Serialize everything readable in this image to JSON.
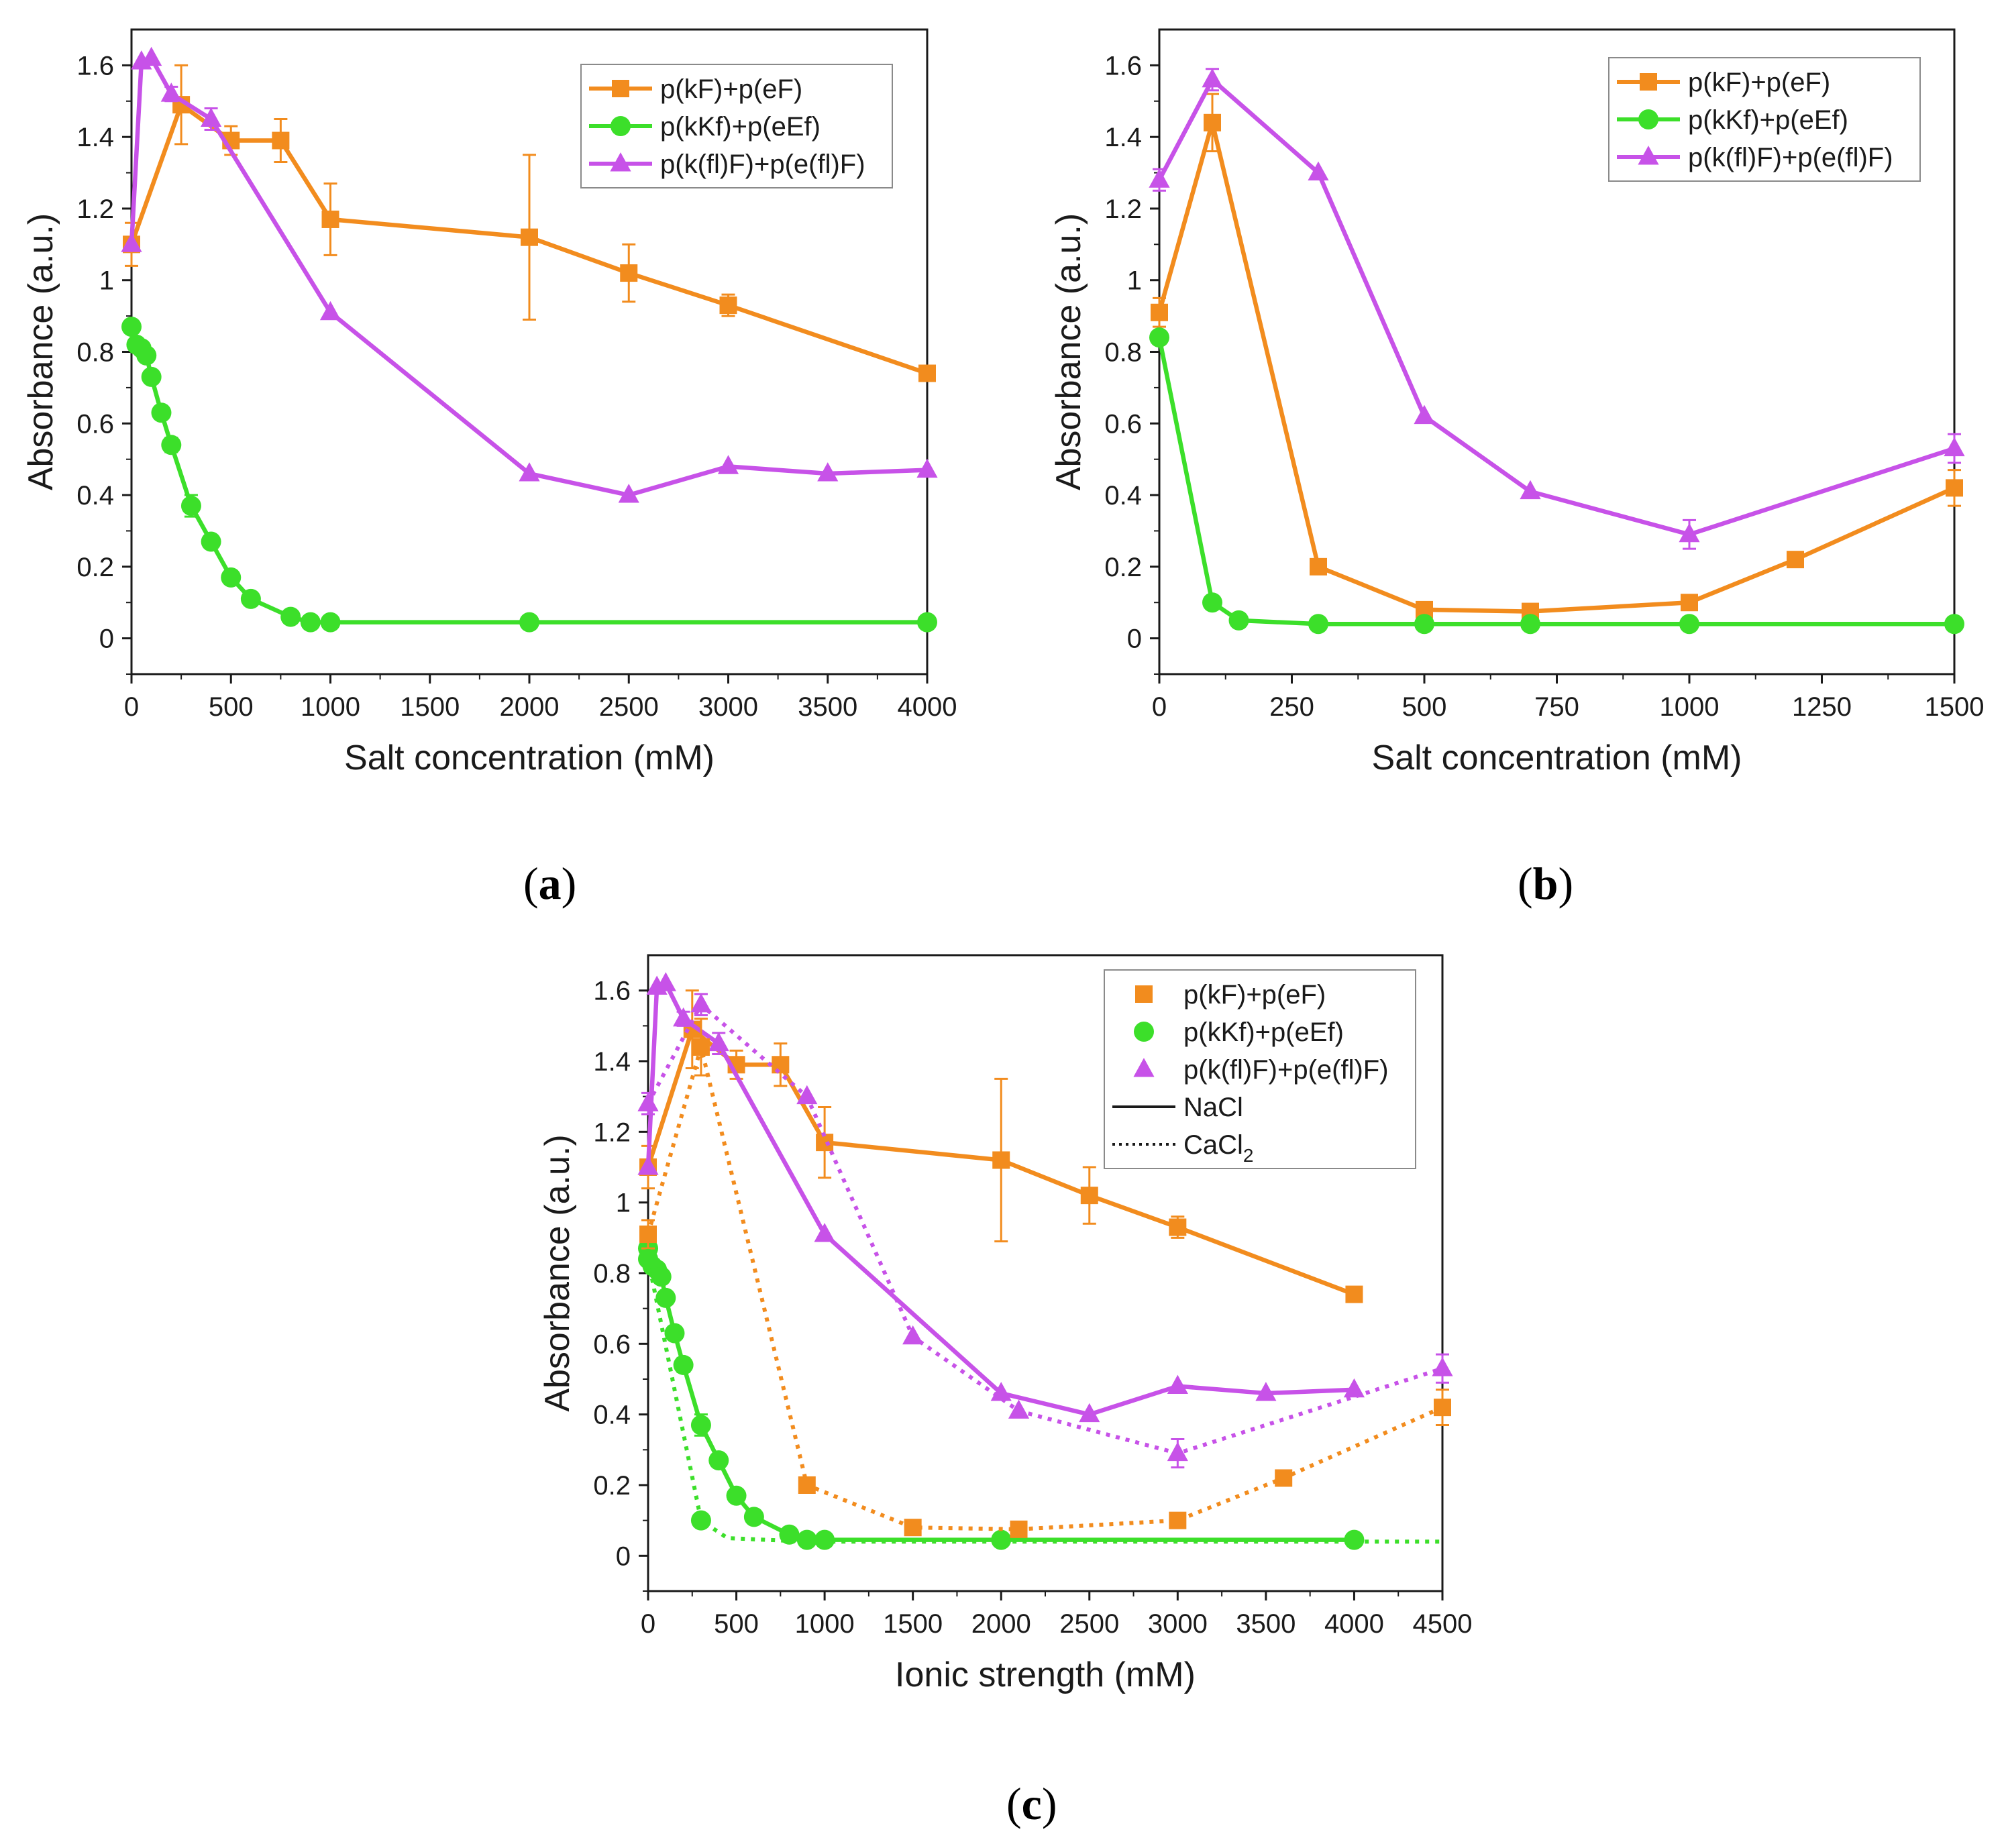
{
  "colors": {
    "orange": "#F28C1E",
    "green": "#3CDF2A",
    "purple": "#C752E8",
    "axis": "#1a1a1a",
    "legend_border": "#8a8a8a"
  },
  "chart_data": [
    {
      "id": "a",
      "panel_label": {
        "open": "(",
        "letter": "a",
        "close": ")"
      },
      "type": "line",
      "xlabel": "Salt concentration (mM)",
      "ylabel": "Absorbance (a.u.)",
      "xlim": [
        0,
        4000
      ],
      "ylim": [
        -0.1,
        1.7
      ],
      "xticks": [
        0,
        500,
        1000,
        1500,
        2000,
        2500,
        3000,
        3500,
        4000
      ],
      "xtick_labels": [
        "0",
        "500",
        "1000",
        "1500",
        "2000",
        "2500",
        "3000",
        "3500",
        "4000"
      ],
      "yticks": [
        0,
        0.2,
        0.4,
        0.6,
        0.8,
        1,
        1.2,
        1.4,
        1.6
      ],
      "ytick_labels": [
        "0",
        "0.2",
        "0.4",
        "0.6",
        "0.8",
        "1",
        "1.2",
        "1.4",
        "1.6"
      ],
      "legend": {
        "position": "top-right",
        "entries": [
          {
            "label": "p(kF)+p(eF)",
            "series": "orange",
            "marker": "square",
            "line": "solid"
          },
          {
            "label": "p(kKf)+p(eEf)",
            "series": "green",
            "marker": "circle",
            "line": "solid"
          },
          {
            "label": "p(k(fl)F)+p(e(fl)F)",
            "series": "purple",
            "marker": "triangle",
            "line": "solid"
          }
        ]
      },
      "series": [
        {
          "name": "p(kF)+p(eF)",
          "color": "orange",
          "marker": "square",
          "line": "solid",
          "x": [
            0,
            250,
            500,
            750,
            1000,
            2000,
            2500,
            3000,
            4000
          ],
          "y": [
            1.1,
            1.49,
            1.39,
            1.39,
            1.17,
            1.12,
            1.02,
            0.93,
            0.74
          ],
          "err": [
            0.06,
            0.11,
            0.04,
            0.06,
            0.1,
            0.23,
            0.08,
            0.03,
            0
          ]
        },
        {
          "name": "p(kKf)+p(eEf)",
          "color": "green",
          "marker": "circle",
          "line": "solid",
          "x": [
            0,
            25,
            50,
            75,
            100,
            150,
            200,
            300,
            400,
            500,
            600,
            800,
            900,
            1000,
            2000,
            4000
          ],
          "y": [
            0.87,
            0.82,
            0.81,
            0.79,
            0.73,
            0.63,
            0.54,
            0.37,
            0.27,
            0.17,
            0.11,
            0.06,
            0.045,
            0.045,
            0.045,
            0.045
          ],
          "err": [
            0,
            0,
            0,
            0,
            0,
            0,
            0.02,
            0.03,
            0,
            0,
            0,
            0,
            0,
            0,
            0,
            0
          ]
        },
        {
          "name": "p(k(fl)F)+p(e(fl)F)",
          "color": "purple",
          "marker": "triangle",
          "line": "solid",
          "x": [
            0,
            50,
            100,
            200,
            400,
            1000,
            2000,
            2500,
            3000,
            3500,
            4000
          ],
          "y": [
            1.1,
            1.61,
            1.62,
            1.52,
            1.45,
            0.91,
            0.46,
            0.4,
            0.48,
            0.46,
            0.47
          ],
          "err": [
            0,
            0,
            0,
            0.02,
            0.03,
            0,
            0,
            0,
            0,
            0,
            0
          ]
        }
      ]
    },
    {
      "id": "b",
      "panel_label": {
        "open": "(",
        "letter": "b",
        "close": ")"
      },
      "type": "line",
      "xlabel": "Salt concentration (mM)",
      "ylabel": "Absorbance (a.u.)",
      "xlim": [
        0,
        1500
      ],
      "ylim": [
        -0.1,
        1.7
      ],
      "xticks": [
        0,
        250,
        500,
        750,
        1000,
        1250,
        1500
      ],
      "xtick_labels": [
        "0",
        "250",
        "500",
        "750",
        "1000",
        "1250",
        "1500"
      ],
      "yticks": [
        0,
        0.2,
        0.4,
        0.6,
        0.8,
        1,
        1.2,
        1.4,
        1.6
      ],
      "ytick_labels": [
        "0",
        "0.2",
        "0.4",
        "0.6",
        "0.8",
        "1",
        "1.2",
        "1.4",
        "1.6"
      ],
      "legend": {
        "position": "top-right",
        "entries": [
          {
            "label": "p(kF)+p(eF)",
            "series": "orange",
            "marker": "square",
            "line": "solid"
          },
          {
            "label": "p(kKf)+p(eEf)",
            "series": "green",
            "marker": "circle",
            "line": "solid"
          },
          {
            "label": "p(k(fl)F)+p(e(fl)F)",
            "series": "purple",
            "marker": "triangle",
            "line": "solid"
          }
        ]
      },
      "series": [
        {
          "name": "p(kF)+p(eF)",
          "color": "orange",
          "marker": "square",
          "line": "solid",
          "x": [
            0,
            100,
            300,
            500,
            700,
            1000,
            1200,
            1500
          ],
          "y": [
            0.91,
            1.44,
            0.2,
            0.08,
            0.075,
            0.1,
            0.22,
            0.42
          ],
          "err": [
            0.04,
            0.08,
            0,
            0,
            0,
            0,
            0,
            0.05
          ]
        },
        {
          "name": "p(kKf)+p(eEf)",
          "color": "green",
          "marker": "circle",
          "line": "solid",
          "x": [
            0,
            100,
            150,
            300,
            500,
            700,
            1000,
            1500
          ],
          "y": [
            0.84,
            0.1,
            0.05,
            0.04,
            0.04,
            0.04,
            0.04,
            0.04
          ],
          "err": [
            0,
            0,
            0,
            0,
            0,
            0,
            0,
            0
          ]
        },
        {
          "name": "p(k(fl)F)+p(e(fl)F)",
          "color": "purple",
          "marker": "triangle",
          "line": "solid",
          "x": [
            0,
            100,
            300,
            500,
            700,
            1000,
            1500
          ],
          "y": [
            1.28,
            1.56,
            1.3,
            0.62,
            0.41,
            0.29,
            0.53
          ],
          "err": [
            0.03,
            0.03,
            0,
            0,
            0,
            0.04,
            0.04
          ]
        }
      ]
    },
    {
      "id": "c",
      "panel_label": {
        "open": "(",
        "letter": "c",
        "close": ")"
      },
      "type": "line",
      "xlabel": "Ionic strength (mM)",
      "ylabel": "Absorbance (a.u.)",
      "xlim": [
        0,
        4500
      ],
      "ylim": [
        -0.1,
        1.7
      ],
      "xticks": [
        0,
        500,
        1000,
        1500,
        2000,
        2500,
        3000,
        3500,
        4000,
        4500
      ],
      "xtick_labels": [
        "0",
        "500",
        "1000",
        "1500",
        "2000",
        "2500",
        "3000",
        "3500",
        "4000",
        "4500"
      ],
      "yticks": [
        0,
        0.2,
        0.4,
        0.6,
        0.8,
        1,
        1.2,
        1.4,
        1.6
      ],
      "ytick_labels": [
        "0",
        "0.2",
        "0.4",
        "0.6",
        "0.8",
        "1",
        "1.2",
        "1.4",
        "1.6"
      ],
      "legend": {
        "position": "top-right",
        "entries": [
          {
            "label": "p(kF)+p(eF)",
            "series": "orange",
            "marker": "square",
            "line": "none"
          },
          {
            "label": "p(kKf)+p(eEf)",
            "series": "green",
            "marker": "circle",
            "line": "none"
          },
          {
            "label": "p(k(fl)F)+p(e(fl)F)",
            "series": "purple",
            "marker": "triangle",
            "line": "none"
          },
          {
            "label": "NaCl",
            "series": "black",
            "marker": "none",
            "line": "solid"
          },
          {
            "label": "CaCl",
            "subscript": "2",
            "series": "black",
            "marker": "none",
            "line": "dotted"
          }
        ]
      },
      "series": [
        {
          "name": "p(kF)+p(eF) NaCl",
          "color": "orange",
          "marker": "square",
          "line": "solid",
          "x": [
            0,
            250,
            500,
            750,
            1000,
            2000,
            2500,
            3000,
            4000
          ],
          "y": [
            1.1,
            1.49,
            1.39,
            1.39,
            1.17,
            1.12,
            1.02,
            0.93,
            0.74
          ],
          "err": [
            0.06,
            0.11,
            0.04,
            0.06,
            0.1,
            0.23,
            0.08,
            0.03,
            0
          ]
        },
        {
          "name": "p(kKf)+p(eEf) NaCl",
          "color": "green",
          "marker": "circle",
          "line": "solid",
          "x": [
            0,
            25,
            50,
            75,
            100,
            150,
            200,
            300,
            400,
            500,
            600,
            800,
            900,
            1000,
            2000,
            4000
          ],
          "y": [
            0.87,
            0.82,
            0.81,
            0.79,
            0.73,
            0.63,
            0.54,
            0.37,
            0.27,
            0.17,
            0.11,
            0.06,
            0.045,
            0.045,
            0.045,
            0.045
          ],
          "err": [
            0,
            0,
            0,
            0,
            0,
            0,
            0.02,
            0.03,
            0,
            0,
            0,
            0,
            0,
            0,
            0,
            0
          ]
        },
        {
          "name": "p(k(fl)F)+p(e(fl)F) NaCl",
          "color": "purple",
          "marker": "triangle",
          "line": "solid",
          "x": [
            0,
            50,
            100,
            200,
            400,
            1000,
            2000,
            2500,
            3000,
            3500,
            4000
          ],
          "y": [
            1.1,
            1.61,
            1.62,
            1.52,
            1.45,
            0.91,
            0.46,
            0.4,
            0.48,
            0.46,
            0.47
          ],
          "err": [
            0,
            0,
            0,
            0.02,
            0.03,
            0,
            0,
            0,
            0,
            0,
            0
          ]
        },
        {
          "name": "p(kF)+p(eF) CaCl2",
          "color": "orange",
          "marker": "square",
          "line": "dotted",
          "x": [
            0,
            300,
            900,
            1500,
            2100,
            3000,
            3600,
            4500
          ],
          "y": [
            0.91,
            1.44,
            0.2,
            0.08,
            0.075,
            0.1,
            0.22,
            0.42
          ],
          "err": [
            0.04,
            0.08,
            0,
            0,
            0,
            0,
            0,
            0.05
          ]
        },
        {
          "name": "p(kKf)+p(eEf) CaCl2",
          "color": "green",
          "marker": "circle",
          "line": "dotted",
          "x": [
            0,
            300,
            450,
            900,
            1500,
            2100,
            3000,
            4500
          ],
          "y": [
            0.84,
            0.1,
            0.05,
            0.04,
            0.04,
            0.04,
            0.04,
            0.04
          ],
          "err": [
            0,
            0,
            0,
            0,
            0,
            0,
            0,
            0
          ],
          "markers_shown": [
            0,
            1
          ]
        },
        {
          "name": "p(k(fl)F)+p(e(fl)F) CaCl2",
          "color": "purple",
          "marker": "triangle",
          "line": "dotted",
          "x": [
            0,
            300,
            900,
            1500,
            2100,
            3000,
            4500
          ],
          "y": [
            1.28,
            1.56,
            1.3,
            0.62,
            0.41,
            0.29,
            0.53
          ],
          "err": [
            0.03,
            0.03,
            0,
            0,
            0,
            0.04,
            0.04
          ]
        }
      ]
    }
  ]
}
